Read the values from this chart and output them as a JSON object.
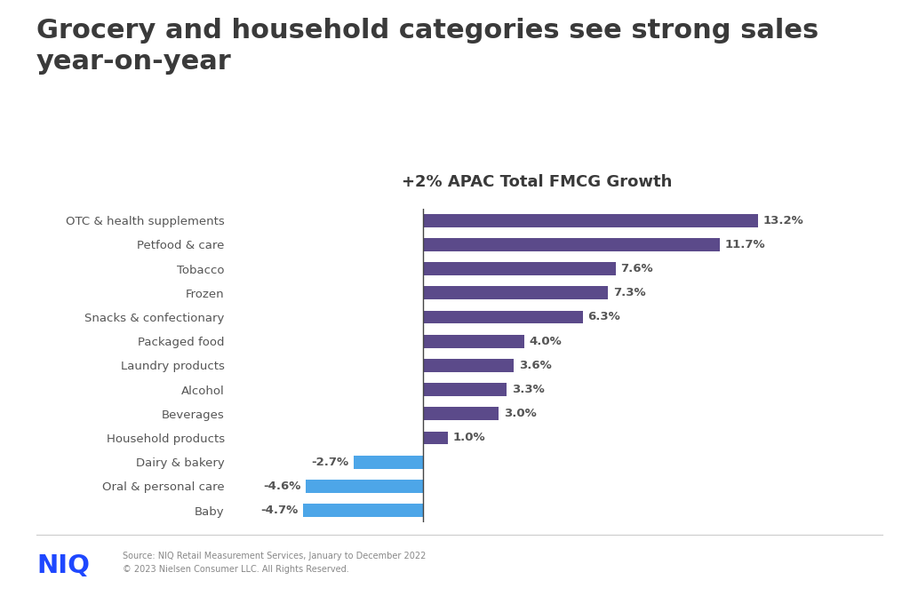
{
  "title": "Grocery and household categories see strong sales\nyear-on-year",
  "subtitle": "+2% APAC Total FMCG Growth",
  "categories": [
    "OTC & health supplements",
    "Petfood & care",
    "Tobacco",
    "Frozen",
    "Snacks & confectionary",
    "Packaged food",
    "Laundry products",
    "Alcohol",
    "Beverages",
    "Household products",
    "Dairy & bakery",
    "Oral & personal care",
    "Baby"
  ],
  "values": [
    13.2,
    11.7,
    7.6,
    7.3,
    6.3,
    4.0,
    3.6,
    3.3,
    3.0,
    1.0,
    -2.7,
    -4.6,
    -4.7
  ],
  "positive_color": "#5b4a8a",
  "negative_color": "#4da6e8",
  "background_color": "#ffffff",
  "title_color": "#3a3a3a",
  "subtitle_color": "#3a3a3a",
  "label_color": "#555555",
  "value_label_color": "#555555",
  "source_line1": "Source: NIQ Retail Measurement Services, January to December 2022",
  "source_line2": "© 2023 Nielsen Consumer LLC. All Rights Reserved.",
  "niq_logo_color": "#1e47ff",
  "footer_line_color": "#cccccc",
  "title_fontsize": 22,
  "subtitle_fontsize": 13,
  "category_fontsize": 9.5,
  "value_fontsize": 9.5,
  "source_fontsize": 7,
  "bar_height": 0.55
}
